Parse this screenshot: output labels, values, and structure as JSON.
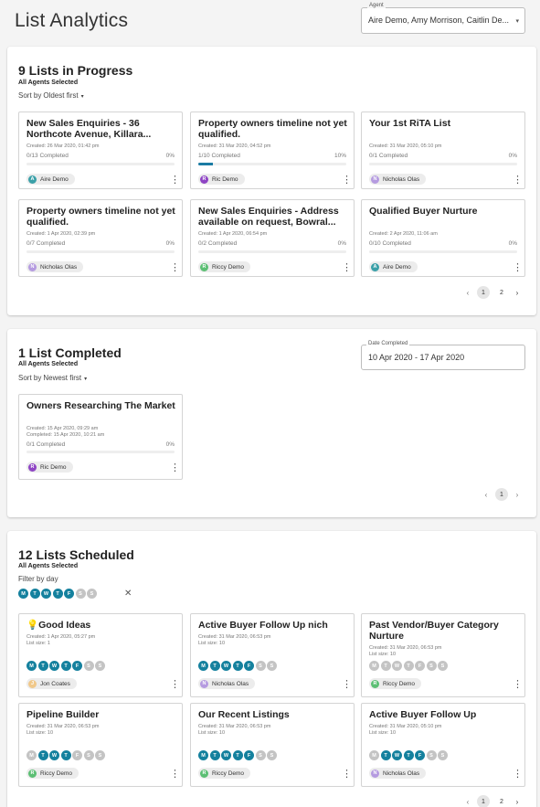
{
  "page_title": "List Analytics",
  "agent_filter": {
    "label": "Agent",
    "value": "Aire Demo, Amy Morrison, Caitlin De..."
  },
  "in_progress": {
    "title": "9 Lists in Progress",
    "subtitle": "All Agents Selected",
    "sort_label": "Sort by",
    "sort_value": "Oldest first",
    "cards": [
      {
        "title": "New Sales Enquiries - 36 Northcote Avenue, Killara...",
        "created": "Created: 26 Mar 2020, 01:42 pm",
        "progress_label": "0/13 Completed",
        "percent_label": "0%",
        "progress": 0,
        "agent": "Aire Demo",
        "initial": "A",
        "color": "#3aa0a8"
      },
      {
        "title": "Property owners timeline not yet qualified.",
        "created": "Created: 31 Mar 2020, 04:52 pm",
        "progress_label": "1/10 Completed",
        "percent_label": "10%",
        "progress": 10,
        "agent": "Ric Demo",
        "initial": "R",
        "color": "#8e44c4"
      },
      {
        "title": "Your 1st RiTA List",
        "created": "Created: 31 Mar 2020, 05:10 pm",
        "progress_label": "0/1 Completed",
        "percent_label": "0%",
        "progress": 0,
        "agent": "Nicholas Olas",
        "initial": "N",
        "color": "#b59be0"
      },
      {
        "title": "Property owners timeline not yet qualified.",
        "created": "Created: 1 Apr 2020, 02:39 pm",
        "progress_label": "0/7 Completed",
        "percent_label": "0%",
        "progress": 0,
        "agent": "Nicholas Olas",
        "initial": "N",
        "color": "#b59be0"
      },
      {
        "title": "New Sales Enquiries - Address available on request, Bowral...",
        "created": "Created: 1 Apr 2020, 06:54 pm",
        "progress_label": "0/2 Completed",
        "percent_label": "0%",
        "progress": 0,
        "agent": "Riccy Demo",
        "initial": "R",
        "color": "#5cbf74"
      },
      {
        "title": "Qualified Buyer Nurture",
        "created": "Created: 2 Apr 2020, 11:06 am",
        "progress_label": "0/10 Completed",
        "percent_label": "0%",
        "progress": 0,
        "agent": "Aire Demo",
        "initial": "A",
        "color": "#3aa0a8"
      }
    ],
    "pages": [
      "1",
      "2"
    ],
    "prev_icon": "‹",
    "next_icon": "›"
  },
  "completed": {
    "title": "1 List Completed",
    "subtitle": "All Agents Selected",
    "sort_label": "Sort by",
    "sort_value": "Newest first",
    "date_label": "Date Completed",
    "date_value": "10 Apr 2020 - 17 Apr 2020",
    "card": {
      "title": "Owners Researching The Market",
      "created": "Created: 15 Apr 2020, 09:29 am",
      "completed": "Completed: 15 Apr 2020, 10:21 am",
      "progress_label": "0/1 Completed",
      "percent_label": "0%",
      "progress": 0,
      "agent": "Ric Demo",
      "initial": "R",
      "color": "#8e44c4"
    },
    "pages": [
      "1"
    ],
    "prev_icon": "‹",
    "next_icon": "›"
  },
  "scheduled": {
    "title": "12 Lists Scheduled",
    "subtitle": "All Agents Selected",
    "filter_label": "Filter by day",
    "filter_days": [
      [
        "M",
        1
      ],
      [
        "T",
        1
      ],
      [
        "W",
        1
      ],
      [
        "T",
        1
      ],
      [
        "F",
        1
      ],
      [
        "S",
        0
      ],
      [
        "S",
        0
      ]
    ],
    "clear_icon": "✕",
    "cards": [
      {
        "title": "Good Ideas",
        "bulb": "💡",
        "created": "Created: 1 Apr 2020, 05:27 pm",
        "size": "List size: 1",
        "days": [
          1,
          1,
          1,
          1,
          1,
          0,
          0
        ],
        "agent": "Jon Coates",
        "initial": "J",
        "color": "#f0c88a"
      },
      {
        "title": "Active Buyer Follow Up nich",
        "bulb": "",
        "created": "Created: 31 Mar 2020, 06:53 pm",
        "size": "List size: 10",
        "days": [
          1,
          1,
          1,
          1,
          1,
          0,
          0
        ],
        "agent": "Nicholas Olas",
        "initial": "N",
        "color": "#b59be0"
      },
      {
        "title": "Past Vendor/Buyer Category Nurture",
        "bulb": "",
        "created": "Created: 31 Mar 2020, 06:53 pm",
        "size": "List size: 10",
        "days": [
          0,
          0,
          0,
          0,
          0,
          0,
          0
        ],
        "agent": "Riccy Demo",
        "initial": "R",
        "color": "#5cbf74"
      },
      {
        "title": "Pipeline Builder",
        "bulb": "",
        "created": "Created: 31 Mar 2020, 06:53 pm",
        "size": "List size: 10",
        "days": [
          0,
          1,
          1,
          1,
          0,
          0,
          0
        ],
        "agent": "Riccy Demo",
        "initial": "R",
        "color": "#5cbf74"
      },
      {
        "title": "Our Recent Listings",
        "bulb": "",
        "created": "Created: 31 Mar 2020, 06:53 pm",
        "size": "List size: 10",
        "days": [
          1,
          1,
          1,
          1,
          1,
          0,
          0
        ],
        "agent": "Riccy Demo",
        "initial": "R",
        "color": "#5cbf74"
      },
      {
        "title": "Active Buyer Follow Up",
        "bulb": "",
        "created": "Created: 31 Mar 2020, 05:10 pm",
        "size": "List size: 10",
        "days": [
          0,
          1,
          1,
          1,
          1,
          0,
          0
        ],
        "agent": "Nicholas Olas",
        "initial": "N",
        "color": "#b59be0"
      }
    ],
    "day_letters": [
      "M",
      "T",
      "W",
      "T",
      "F",
      "S",
      "S"
    ],
    "pages": [
      "1",
      "2"
    ],
    "prev_icon": "‹",
    "next_icon": "›"
  },
  "menu_icon": "⋮",
  "caret_icon": "▾"
}
